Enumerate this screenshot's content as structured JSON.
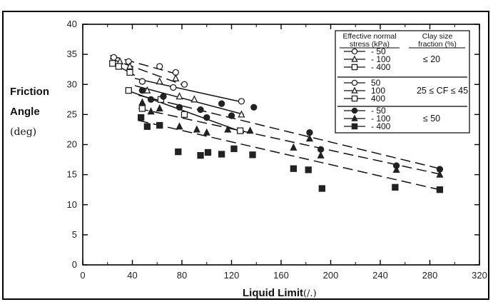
{
  "chart_data": {
    "type": "scatter",
    "title": "",
    "xlabel": "Liquid Limit",
    "xlabel_unit": "(/.)",
    "ylabel_line1": "Friction",
    "ylabel_line2": "Angle",
    "ylabel_unit": "(deg)",
    "xlim": [
      0,
      320
    ],
    "ylim": [
      0,
      40
    ],
    "x_ticks": [
      "0",
      "40",
      "80",
      "120",
      "160",
      "200",
      "240",
      "280",
      "320"
    ],
    "y_ticks": [
      "0",
      "5",
      "10",
      "15",
      "20",
      "25",
      "30",
      "35",
      "40"
    ],
    "legend": {
      "placement": "top-right",
      "header_left": [
        "Effective normal",
        "stress (kPa)"
      ],
      "header_right": [
        "Clay size",
        "fraction (%)"
      ],
      "groups": [
        {
          "range_label": "≤ 20",
          "stress_labels": [
            "- 50",
            "- 100",
            "- 400"
          ]
        },
        {
          "range_label": "25 ≤ CF ≤ 45",
          "stress_labels": [
            "50",
            "100",
            "400"
          ]
        },
        {
          "range_label": "≤ 50",
          "stress_labels": [
            "- 50",
            "- 100",
            "- 400"
          ]
        }
      ]
    },
    "series": [
      {
        "group": 0,
        "stress": 50,
        "marker": "circle-open",
        "points": [
          [
            25,
            34.5
          ],
          [
            37,
            33.8
          ],
          [
            62,
            33.0
          ],
          [
            75,
            32.0
          ]
        ],
        "fit": [
          [
            22,
            34.8
          ],
          [
            80,
            31.5
          ]
        ],
        "fit_style": "dashed"
      },
      {
        "group": 0,
        "stress": 100,
        "marker": "triangle-open",
        "points": [
          [
            30,
            33.8
          ],
          [
            38,
            33.0
          ],
          [
            62,
            30.5
          ],
          [
            75,
            31.0
          ]
        ],
        "fit": [
          [
            22,
            34.3
          ],
          [
            80,
            30.0
          ]
        ],
        "fit_style": "dashed"
      },
      {
        "group": 0,
        "stress": 400,
        "marker": "square-open",
        "points": [
          [
            24,
            33.5
          ],
          [
            29,
            33.0
          ],
          [
            38,
            32.0
          ]
        ],
        "fit": [
          [
            22,
            33.8
          ],
          [
            42,
            31.5
          ]
        ],
        "fit_style": "solid"
      },
      {
        "group": 1,
        "stress": 50,
        "marker": "circle-open",
        "points": [
          [
            48,
            30.5
          ],
          [
            73,
            29.5
          ],
          [
            82,
            30.0
          ],
          [
            128,
            27.2
          ]
        ],
        "fit": [
          [
            42,
            31.0
          ],
          [
            130,
            27.0
          ]
        ],
        "fit_style": "solid"
      },
      {
        "group": 1,
        "stress": 100,
        "marker": "triangle-open",
        "points": [
          [
            52,
            29.0
          ],
          [
            78,
            28.0
          ],
          [
            90,
            27.5
          ],
          [
            128,
            25.0
          ]
        ],
        "fit": [
          [
            42,
            29.8
          ],
          [
            130,
            25.0
          ]
        ],
        "fit_style": "solid"
      },
      {
        "group": 1,
        "stress": 400,
        "marker": "square-open",
        "points": [
          [
            37,
            29.0
          ],
          [
            48,
            26.0
          ],
          [
            63,
            27.5
          ],
          [
            82,
            25.0
          ],
          [
            127,
            22.3
          ]
        ],
        "fit": [
          [
            36,
            29.0
          ],
          [
            130,
            22.0
          ]
        ],
        "fit_style": "solid"
      },
      {
        "group": 2,
        "stress": 50,
        "marker": "circle-filled",
        "points": [
          [
            48,
            29.0
          ],
          [
            55,
            27.5
          ],
          [
            65,
            28.0
          ],
          [
            78,
            26.2
          ],
          [
            95,
            25.8
          ],
          [
            100,
            24.5
          ],
          [
            112,
            26.8
          ],
          [
            120,
            24.8
          ],
          [
            138,
            26.2
          ],
          [
            183,
            22.0
          ],
          [
            192,
            19.2
          ],
          [
            253,
            16.5
          ],
          [
            288,
            15.9
          ]
        ],
        "fit": [
          [
            45,
            28.2
          ],
          [
            290,
            15.9
          ]
        ],
        "fit_style": "dashed"
      },
      {
        "group": 2,
        "stress": 100,
        "marker": "triangle-filled",
        "points": [
          [
            48,
            27.0
          ],
          [
            55,
            25.5
          ],
          [
            62,
            26.0
          ],
          [
            78,
            23.0
          ],
          [
            92,
            22.5
          ],
          [
            100,
            22.0
          ],
          [
            117,
            22.5
          ],
          [
            135,
            22.3
          ],
          [
            170,
            19.5
          ],
          [
            183,
            21.0
          ],
          [
            192,
            18.2
          ],
          [
            253,
            15.8
          ],
          [
            288,
            15.0
          ]
        ],
        "fit": [
          [
            45,
            26.0
          ],
          [
            290,
            15.0
          ]
        ],
        "fit_style": "dashed"
      },
      {
        "group": 2,
        "stress": 400,
        "marker": "square-filled",
        "points": [
          [
            47,
            24.5
          ],
          [
            52,
            23.0
          ],
          [
            62,
            23.2
          ],
          [
            77,
            18.8
          ],
          [
            95,
            18.2
          ],
          [
            101,
            18.7
          ],
          [
            112,
            18.4
          ],
          [
            122,
            19.3
          ],
          [
            137,
            18.3
          ],
          [
            170,
            16.0
          ],
          [
            182,
            15.8
          ],
          [
            193,
            12.7
          ],
          [
            252,
            12.9
          ],
          [
            288,
            12.5
          ]
        ],
        "fit": [
          [
            45,
            24.0
          ],
          [
            290,
            12.4
          ]
        ],
        "fit_style": "dashed"
      }
    ]
  }
}
